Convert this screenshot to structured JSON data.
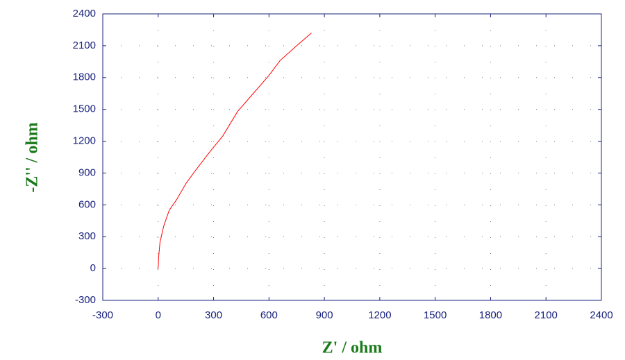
{
  "chart_data": {
    "type": "line",
    "x_label": "Z' / ohm",
    "y_label": "-Z'' / ohm",
    "series": [
      {
        "color": "#ff0000",
        "x": [
          0,
          2,
          10,
          30,
          60,
          100,
          150,
          200,
          280,
          350,
          430,
          530,
          600,
          660,
          750,
          830
        ],
        "values": [
          0,
          100,
          250,
          400,
          550,
          650,
          800,
          920,
          1100,
          1250,
          1480,
          1680,
          1820,
          1960,
          2100,
          2220
        ]
      }
    ],
    "xlim": [
      -300,
      2400
    ],
    "xticks": [
      -300,
      0,
      300,
      600,
      900,
      1200,
      1500,
      1800,
      2100,
      2400
    ],
    "ylim": [
      -300,
      2400
    ],
    "yticks": [
      -300,
      0,
      300,
      600,
      900,
      1200,
      1500,
      1800,
      2100,
      2400
    ],
    "grid": true,
    "frame_color": "#1a237e"
  }
}
